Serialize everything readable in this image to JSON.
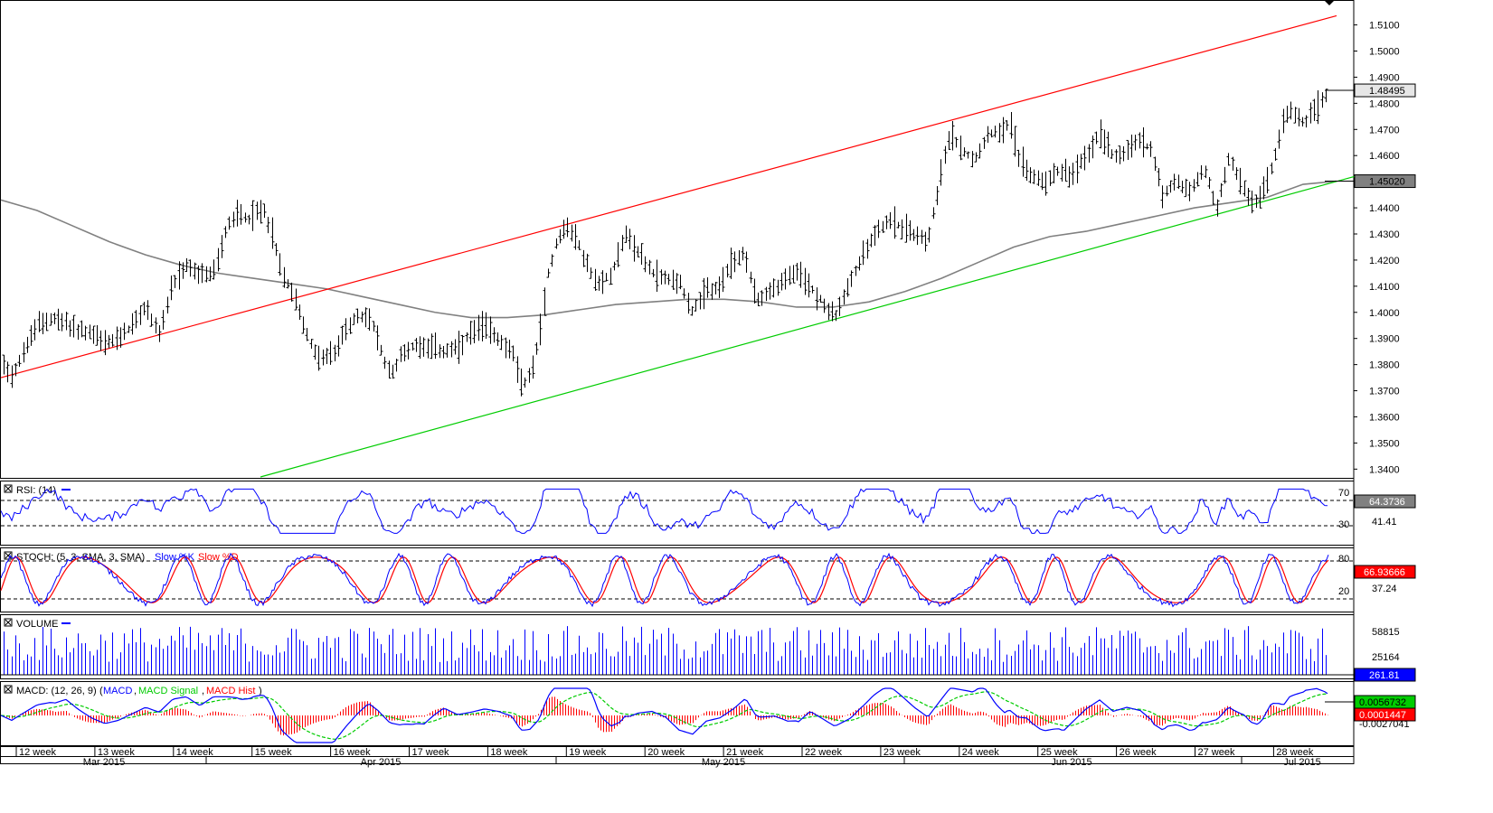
{
  "chart_data": {
    "type": "ohlc",
    "instrument_note": "",
    "price_panel": {
      "y_ticks": [
        "1.5100",
        "1.5000",
        "1.4900",
        "1.4800",
        "1.4700",
        "1.4600",
        "1.4400",
        "1.4300",
        "1.4200",
        "1.4100",
        "1.4000",
        "1.3900",
        "1.3800",
        "1.3700",
        "1.3600",
        "1.3500",
        "1.3400"
      ],
      "y_range": [
        1.337,
        1.5185
      ],
      "current_price_label": "1.48495",
      "ma_price_label": "1.45020",
      "upper_channel": {
        "start": [
          0,
          1.375
        ],
        "end": [
          1477,
          1.5135
        ],
        "color": "#ff0000"
      },
      "lower_channel": {
        "start": [
          150,
          1.337
        ],
        "end": [
          1477,
          1.452
        ],
        "color": "#00cc00"
      },
      "moving_average": {
        "color": "#808080",
        "points": [
          [
            0,
            1.443
          ],
          [
            40,
            1.439
          ],
          [
            80,
            1.433
          ],
          [
            120,
            1.427
          ],
          [
            160,
            1.422
          ],
          [
            200,
            1.418
          ],
          [
            240,
            1.415
          ],
          [
            280,
            1.413
          ],
          [
            320,
            1.411
          ],
          [
            360,
            1.409
          ],
          [
            400,
            1.406
          ],
          [
            440,
            1.403
          ],
          [
            480,
            1.4
          ],
          [
            520,
            1.398
          ],
          [
            560,
            1.398
          ],
          [
            600,
            1.399
          ],
          [
            640,
            1.401
          ],
          [
            680,
            1.403
          ],
          [
            720,
            1.404
          ],
          [
            760,
            1.405
          ],
          [
            800,
            1.405
          ],
          [
            840,
            1.404
          ],
          [
            880,
            1.402
          ],
          [
            920,
            1.402
          ],
          [
            960,
            1.404
          ],
          [
            1000,
            1.408
          ],
          [
            1040,
            1.413
          ],
          [
            1080,
            1.419
          ],
          [
            1120,
            1.425
          ],
          [
            1160,
            1.429
          ],
          [
            1200,
            1.431
          ],
          [
            1240,
            1.434
          ],
          [
            1280,
            1.437
          ],
          [
            1320,
            1.44
          ],
          [
            1360,
            1.442
          ],
          [
            1400,
            1.444
          ],
          [
            1440,
            1.449
          ],
          [
            1477,
            1.4502
          ]
        ]
      },
      "price_path": [
        [
          0,
          1.382
        ],
        [
          12,
          1.376
        ],
        [
          25,
          1.385
        ],
        [
          40,
          1.395
        ],
        [
          55,
          1.398
        ],
        [
          70,
          1.396
        ],
        [
          85,
          1.393
        ],
        [
          100,
          1.392
        ],
        [
          115,
          1.388
        ],
        [
          130,
          1.39
        ],
        [
          145,
          1.395
        ],
        [
          160,
          1.402
        ],
        [
          175,
          1.392
        ],
        [
          190,
          1.41
        ],
        [
          205,
          1.418
        ],
        [
          220,
          1.414
        ],
        [
          235,
          1.415
        ],
        [
          250,
          1.433
        ],
        [
          262,
          1.438
        ],
        [
          275,
          1.436
        ],
        [
          290,
          1.44
        ],
        [
          300,
          1.43
        ],
        [
          310,
          1.415
        ],
        [
          322,
          1.408
        ],
        [
          335,
          1.395
        ],
        [
          345,
          1.385
        ],
        [
          358,
          1.382
        ],
        [
          370,
          1.385
        ],
        [
          382,
          1.395
        ],
        [
          395,
          1.398
        ],
        [
          408,
          1.398
        ],
        [
          420,
          1.385
        ],
        [
          430,
          1.376
        ],
        [
          445,
          1.385
        ],
        [
          460,
          1.388
        ],
        [
          475,
          1.387
        ],
        [
          490,
          1.385
        ],
        [
          505,
          1.386
        ],
        [
          520,
          1.392
        ],
        [
          535,
          1.395
        ],
        [
          550,
          1.39
        ],
        [
          565,
          1.385
        ],
        [
          575,
          1.372
        ],
        [
          585,
          1.376
        ],
        [
          595,
          1.39
        ],
        [
          605,
          1.415
        ],
        [
          615,
          1.428
        ],
        [
          625,
          1.433
        ],
        [
          635,
          1.429
        ],
        [
          645,
          1.42
        ],
        [
          660,
          1.41
        ],
        [
          675,
          1.415
        ],
        [
          690,
          1.43
        ],
        [
          705,
          1.423
        ],
        [
          720,
          1.415
        ],
        [
          735,
          1.413
        ],
        [
          750,
          1.412
        ],
        [
          765,
          1.4
        ],
        [
          780,
          1.408
        ],
        [
          795,
          1.41
        ],
        [
          810,
          1.42
        ],
        [
          822,
          1.422
        ],
        [
          835,
          1.405
        ],
        [
          850,
          1.408
        ],
        [
          865,
          1.412
        ],
        [
          880,
          1.415
        ],
        [
          895,
          1.41
        ],
        [
          910,
          1.403
        ],
        [
          922,
          1.398
        ],
        [
          935,
          1.408
        ],
        [
          950,
          1.42
        ],
        [
          965,
          1.43
        ],
        [
          980,
          1.435
        ],
        [
          995,
          1.433
        ],
        [
          1010,
          1.43
        ],
        [
          1025,
          1.428
        ],
        [
          1040,
          1.455
        ],
        [
          1050,
          1.468
        ],
        [
          1060,
          1.464
        ],
        [
          1075,
          1.458
        ],
        [
          1090,
          1.468
        ],
        [
          1105,
          1.47
        ],
        [
          1115,
          1.473
        ],
        [
          1125,
          1.46
        ],
        [
          1140,
          1.452
        ],
        [
          1155,
          1.45
        ],
        [
          1170,
          1.455
        ],
        [
          1185,
          1.452
        ],
        [
          1200,
          1.46
        ],
        [
          1215,
          1.469
        ],
        [
          1230,
          1.46
        ],
        [
          1245,
          1.462
        ],
        [
          1260,
          1.466
        ],
        [
          1272,
          1.462
        ],
        [
          1285,
          1.445
        ],
        [
          1300,
          1.45
        ],
        [
          1315,
          1.446
        ],
        [
          1330,
          1.455
        ],
        [
          1345,
          1.44
        ],
        [
          1358,
          1.46
        ],
        [
          1370,
          1.45
        ],
        [
          1382,
          1.442
        ],
        [
          1395,
          1.445
        ],
        [
          1405,
          1.455
        ],
        [
          1415,
          1.47
        ],
        [
          1425,
          1.477
        ],
        [
          1440,
          1.472
        ],
        [
          1455,
          1.478
        ],
        [
          1467,
          1.4849
        ]
      ]
    },
    "rsi_panel": {
      "title": "RSI: (14)",
      "levels": [
        70,
        30
      ],
      "right_labels": [
        "70",
        "30",
        "41.41"
      ],
      "current_label": "64.3736",
      "line_color": "#0000ff"
    },
    "stoch_panel": {
      "title": "STOCH: (5, 3, SMA, 3, SMA)",
      "legend": [
        "Slow %K",
        "Slow %D"
      ],
      "levels": [
        80,
        20
      ],
      "right_labels": [
        "80",
        "20",
        "37.24"
      ],
      "current_label": "66.93666",
      "k_color": "#0000ff",
      "d_color": "#ff0000"
    },
    "volume_panel": {
      "title": "VOLUME",
      "right_labels": [
        "58815",
        "25164"
      ],
      "current_label": "261.81",
      "bar_color": "#0000ff"
    },
    "macd_panel": {
      "title": "MACD: (12, 26, 9)",
      "legend": [
        "MACD",
        "MACD Signal",
        "MACD Hist"
      ],
      "right_labels": [
        "-0.0027041"
      ],
      "macd_label": "0.0056732",
      "signal_label": "0.0001447",
      "macd_color": "#0000ff",
      "signal_color": "#00cc00",
      "hist_color": "#ff0000"
    },
    "x_axis": {
      "weeks": [
        "12 week",
        "13 week",
        "14 week",
        "15 week",
        "16 week",
        "17 week",
        "18 week",
        "19 week",
        "20 week",
        "21 week",
        "22 week",
        "23 week",
        "24 week",
        "25 week",
        "26 week",
        "27 week",
        "28 week"
      ],
      "months": [
        "Mar 2015",
        "Apr 2015",
        "May 2015",
        "Jun 2015",
        "Jul 2015"
      ]
    }
  }
}
